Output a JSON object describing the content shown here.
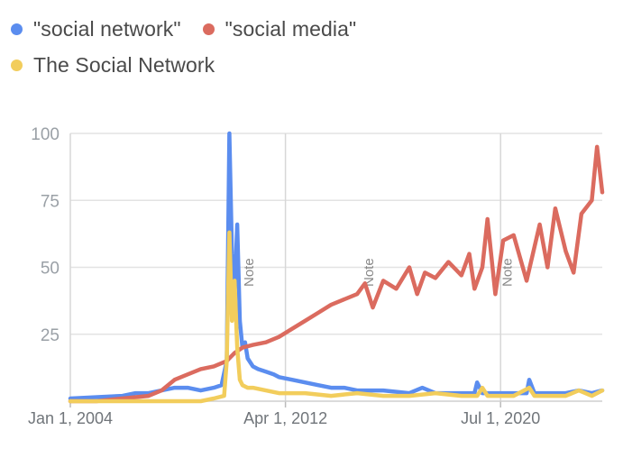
{
  "legend": {
    "items": [
      {
        "label": "\"social network\"",
        "color": "#5b8def"
      },
      {
        "label": "\"social media\"",
        "color": "#db6b5f"
      },
      {
        "label": "The Social Network",
        "color": "#f2cd5c"
      }
    ]
  },
  "chart_data": {
    "type": "line",
    "title": "",
    "xlabel": "",
    "ylabel": "",
    "ylim": [
      0,
      100
    ],
    "yticks": [
      "25",
      "50",
      "75",
      "100"
    ],
    "xlim": [
      2004.0,
      2024.4
    ],
    "xticks": [
      {
        "label": "Jan 1, 2004",
        "x": 2004.0
      },
      {
        "label": "Apr 1, 2012",
        "x": 2012.25
      },
      {
        "label": "Jul 1, 2020",
        "x": 2020.5
      }
    ],
    "grid": true,
    "legend_position": "top-left",
    "annotations": [
      {
        "text": "Note",
        "x": 2010.4
      },
      {
        "text": "Note",
        "x": 2015.0
      },
      {
        "text": "Note",
        "x": 2020.3
      }
    ],
    "series": [
      {
        "name": "\"social network\"",
        "color": "#5b8def",
        "x": [
          2004.0,
          2006.0,
          2006.5,
          2007.0,
          2007.5,
          2008.0,
          2008.5,
          2009.0,
          2009.5,
          2009.8,
          2010.0,
          2010.1,
          2010.2,
          2010.3,
          2010.4,
          2010.5,
          2010.6,
          2010.7,
          2010.8,
          2011.0,
          2011.2,
          2011.5,
          2011.8,
          2012.0,
          2012.5,
          2013.0,
          2013.5,
          2014.0,
          2014.5,
          2015.0,
          2016.0,
          2017.0,
          2017.5,
          2018.0,
          2019.0,
          2019.5,
          2019.6,
          2019.8,
          2020.0,
          2021.0,
          2021.5,
          2021.6,
          2021.8,
          2022.0,
          2023.0,
          2023.5,
          2024.0,
          2024.4
        ],
        "y": [
          1,
          2,
          3,
          3,
          4,
          5,
          5,
          4,
          5,
          6,
          15,
          100,
          55,
          40,
          66,
          30,
          20,
          22,
          16,
          13,
          12,
          11,
          10,
          9,
          8,
          7,
          6,
          5,
          5,
          4,
          4,
          3,
          5,
          3,
          3,
          3,
          7,
          3,
          3,
          3,
          3,
          8,
          3,
          3,
          3,
          4,
          3,
          4
        ]
      },
      {
        "name": "\"social media\"",
        "color": "#db6b5f",
        "x": [
          2004.0,
          2005.0,
          2006.0,
          2007.0,
          2007.5,
          2008.0,
          2008.5,
          2009.0,
          2009.5,
          2010.0,
          2010.3,
          2010.6,
          2011.0,
          2011.5,
          2012.0,
          2012.5,
          2013.0,
          2013.5,
          2014.0,
          2014.5,
          2015.0,
          2015.3,
          2015.6,
          2016.0,
          2016.5,
          2017.0,
          2017.3,
          2017.6,
          2018.0,
          2018.5,
          2019.0,
          2019.3,
          2019.5,
          2019.8,
          2020.0,
          2020.3,
          2020.6,
          2021.0,
          2021.5,
          2022.0,
          2022.3,
          2022.6,
          2023.0,
          2023.3,
          2023.6,
          2024.0,
          2024.2,
          2024.4
        ],
        "y": [
          0,
          0,
          1,
          2,
          4,
          8,
          10,
          12,
          13,
          15,
          18,
          20,
          21,
          22,
          24,
          27,
          30,
          33,
          36,
          38,
          40,
          44,
          35,
          45,
          42,
          50,
          40,
          48,
          46,
          52,
          47,
          55,
          42,
          50,
          68,
          40,
          60,
          62,
          45,
          66,
          50,
          72,
          56,
          48,
          70,
          75,
          95,
          78
        ]
      },
      {
        "name": "The Social Network",
        "color": "#f2cd5c",
        "x": [
          2004.0,
          2008.0,
          2009.0,
          2009.5,
          2009.9,
          2010.0,
          2010.1,
          2010.2,
          2010.3,
          2010.4,
          2010.5,
          2010.6,
          2010.8,
          2011.0,
          2011.5,
          2012.0,
          2013.0,
          2014.0,
          2015.0,
          2016.0,
          2017.0,
          2018.0,
          2019.0,
          2019.6,
          2019.8,
          2020.0,
          2021.0,
          2021.6,
          2021.8,
          2022.0,
          2023.0,
          2023.5,
          2024.0,
          2024.4
        ],
        "y": [
          0,
          0,
          0,
          1,
          2,
          15,
          63,
          30,
          45,
          20,
          8,
          6,
          5,
          5,
          4,
          3,
          3,
          2,
          3,
          2,
          2,
          3,
          2,
          2,
          5,
          2,
          2,
          5,
          2,
          2,
          2,
          4,
          2,
          4
        ]
      }
    ]
  }
}
